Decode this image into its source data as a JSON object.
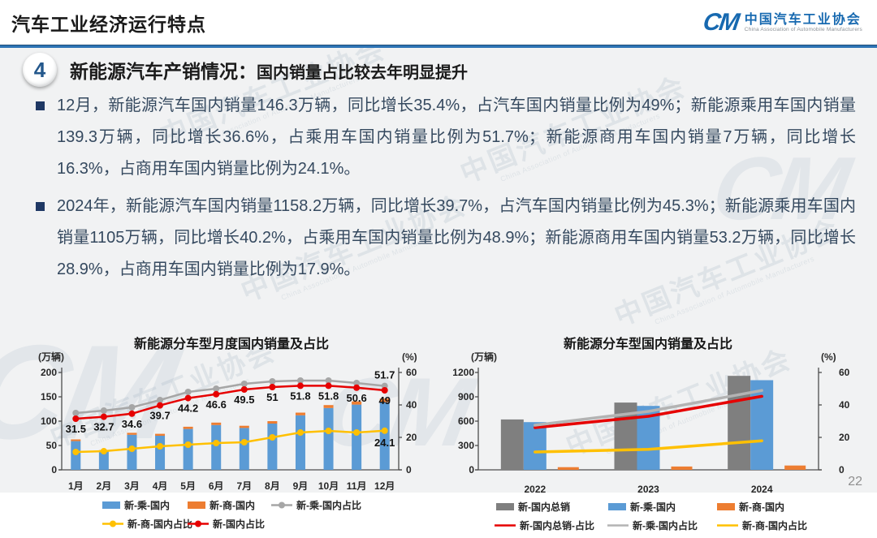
{
  "header": {
    "title": "汽车工业经济运行特点",
    "logo": {
      "acronym": "CM",
      "org_cn": "中国汽车工业协会",
      "org_en": "China Association of Automobile Manufacturers"
    }
  },
  "section": {
    "number": "4",
    "title": "新能源汽车产销情况：",
    "subtitle": "国内销量占比较去年明显提升"
  },
  "bullets": [
    "12月，新能源汽车国内销量146.3万辆，同比增长35.4%，占汽车国内销量比例为49%；新能源乘用车国内销量139.3万辆，同比增长36.6%，占乘用车国内销量比例为51.7%；新能源商用车国内销量7万辆，同比增长16.3%，占商用车国内销量比例为24.1%。",
    "2024年，新能源汽车国内销量1158.2万辆，同比增长39.7%，占汽车国内销量比例为45.3%；新能源乘用车国内销量1105万辆，同比增长40.2%，占乘用车国内销量比例为48.9%；新能源商用车国内销量53.2万辆，同比增长28.9%，占商用车国内销量比例为17.9%。"
  ],
  "page_number": "22",
  "watermark": {
    "cn": "中国汽车工业协会",
    "en": "China Association of Automobile Manufacturers",
    "logo_text": "CM"
  },
  "colors": {
    "accent_blue": "#2e74b5",
    "bar_blue": "#5B9BD5",
    "bar_orange": "#ED7D31",
    "bar_gray": "#7F7F7F",
    "line_red": "#E60000",
    "line_gray": "#A6A6A6",
    "line_yellow": "#FFC000",
    "bullet_square": "#1F3864"
  },
  "chart_data": [
    {
      "type": "bar",
      "title": "新能源分车型月度国内销量及占比",
      "left_axis_label": "(万辆)",
      "right_axis_label": "(%)",
      "left_ticks": [
        0,
        50,
        100,
        150,
        200
      ],
      "right_ticks": [
        0,
        20,
        40,
        60
      ],
      "left_max": 200,
      "right_max": 60,
      "categories": [
        "1月",
        "2月",
        "3月",
        "4月",
        "5月",
        "6月",
        "7月",
        "8月",
        "9月",
        "10月",
        "11月",
        "12月"
      ],
      "bar_mode": "stack",
      "bar_series": [
        {
          "name": "新-乘-国内",
          "color": "#5B9BD5",
          "values": [
            59,
            38,
            72,
            70,
            84,
            92,
            86,
            95,
            112,
            127,
            134,
            139
          ]
        },
        {
          "name": "新-商-国内",
          "color": "#ED7D31",
          "values": [
            3.5,
            2.5,
            4,
            4,
            4.5,
            5,
            4.5,
            5,
            5.5,
            6,
            6.5,
            7.3
          ]
        }
      ],
      "line_series": [
        {
          "name": "新-乘-国内占比",
          "color": "#A6A6A6",
          "markers": true,
          "label_dy": -9,
          "values": [
            35,
            36.5,
            38.5,
            43,
            48,
            50,
            53,
            54.5,
            55,
            55,
            53.5,
            51.7
          ],
          "point_labels": [
            null,
            null,
            null,
            null,
            null,
            null,
            null,
            null,
            null,
            null,
            null,
            "51.7"
          ]
        },
        {
          "name": "新-商-国内占比",
          "color": "#FFC000",
          "markers": true,
          "label_dy": 19,
          "values": [
            11,
            11.5,
            13,
            14.5,
            15.5,
            16.5,
            17,
            20,
            23,
            24,
            23,
            24.1
          ],
          "point_labels": [
            null,
            null,
            null,
            null,
            null,
            null,
            null,
            null,
            null,
            null,
            null,
            "24.1"
          ]
        },
        {
          "name": "新-国内占比",
          "color": "#E60000",
          "markers": true,
          "label_dy": 17,
          "values": [
            31.5,
            32.7,
            34.6,
            39.7,
            44.2,
            46.6,
            49.5,
            51,
            51.8,
            51.8,
            50.6,
            49
          ],
          "point_labels": [
            "31.5",
            "32.7",
            "34.6",
            "39.7",
            "44.2",
            "46.6",
            "49.5",
            "51",
            "51.8",
            "51.8",
            "50.6",
            "49"
          ]
        }
      ],
      "legend_rows": [
        [
          {
            "type": "bar",
            "color": "#5B9BD5",
            "label": "新-乘-国内"
          },
          {
            "type": "bar",
            "color": "#ED7D31",
            "label": "新-商-国内"
          },
          {
            "type": "line",
            "color": "#A6A6A6",
            "marker": true,
            "label": "新-乘-国内占比"
          }
        ],
        [
          {
            "type": "line",
            "color": "#FFC000",
            "marker": true,
            "label": "新-商-国内占比"
          },
          {
            "type": "line",
            "color": "#E60000",
            "marker": true,
            "label": "新-国内占比"
          }
        ]
      ]
    },
    {
      "type": "bar",
      "title": "新能源分车型国内销量及占比",
      "left_axis_label": "(万辆)",
      "right_axis_label": "(%)",
      "left_ticks": [
        0,
        300,
        600,
        900,
        1200
      ],
      "right_ticks": [
        0,
        20,
        40,
        60
      ],
      "left_max": 1200,
      "right_max": 60,
      "categories": [
        "2022",
        "2023",
        "2024"
      ],
      "bar_mode": "cluster",
      "bar_series": [
        {
          "name": "新-国内总销",
          "color": "#7F7F7F",
          "values": [
            621,
            829,
            1158.2
          ]
        },
        {
          "name": "新-乘-国内",
          "color": "#5B9BD5",
          "values": [
            588,
            788,
            1105
          ]
        },
        {
          "name": "新-商-国内",
          "color": "#ED7D31",
          "values": [
            33,
            41,
            53.2
          ]
        }
      ],
      "line_series": [
        {
          "name": "新-国内总销-占比",
          "color": "#E60000",
          "markers": false,
          "values": [
            26,
            33,
            45.3
          ]
        },
        {
          "name": "新-乘-国内占比",
          "color": "#B3B3B3",
          "markers": false,
          "values": [
            27.5,
            36,
            48.9
          ]
        },
        {
          "name": "新-商-国内占比",
          "color": "#FFC000",
          "markers": false,
          "values": [
            11,
            12.6,
            17.9
          ]
        }
      ],
      "legend_rows": [
        [
          {
            "type": "bar",
            "color": "#7F7F7F",
            "label": "新-国内总销"
          },
          {
            "type": "bar",
            "color": "#5B9BD5",
            "label": "新-乘-国内"
          },
          {
            "type": "bar",
            "color": "#ED7D31",
            "label": "新-商-国内"
          }
        ],
        [
          {
            "type": "line",
            "color": "#E60000",
            "marker": false,
            "label": "新-国内总销-占比"
          },
          {
            "type": "line",
            "color": "#B3B3B3",
            "marker": false,
            "label": "新-乘-国内占比"
          },
          {
            "type": "line",
            "color": "#FFC000",
            "marker": false,
            "label": "新-商-国内占比"
          }
        ]
      ]
    }
  ]
}
